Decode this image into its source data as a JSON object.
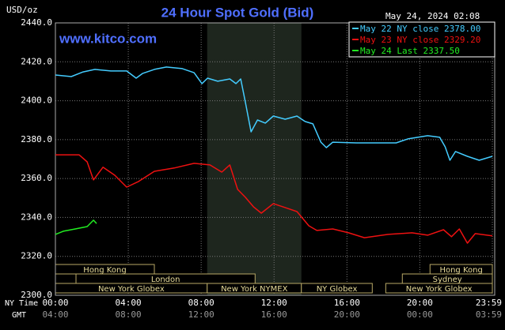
{
  "chart_data": {
    "type": "line",
    "title": "24 Hour Spot Gold (Bid)",
    "y_label": "USD/oz",
    "timestamp": "May 24, 2024 02:08",
    "watermark": "www.kitco.com",
    "x_label": "NY Time",
    "x2_label": "GMT",
    "background": "#000000",
    "grid": true,
    "legend": "upper right",
    "xlim": [
      0,
      23.98
    ],
    "ylim": [
      2300,
      2440
    ],
    "yticks": [
      {
        "value": 2300,
        "label": "2300.0"
      },
      {
        "value": 2320,
        "label": "2320.0"
      },
      {
        "value": 2340,
        "label": "2340.0"
      },
      {
        "value": 2360,
        "label": "2360.0"
      },
      {
        "value": 2380,
        "label": "2380.0"
      },
      {
        "value": 2400,
        "label": "2400.0"
      },
      {
        "value": 2420,
        "label": "2420.0"
      },
      {
        "value": 2440,
        "label": "2440.0"
      }
    ],
    "xticks": [
      {
        "value": 0,
        "label": "00:00"
      },
      {
        "value": 4,
        "label": "04:00"
      },
      {
        "value": 8,
        "label": "08:00"
      },
      {
        "value": 12,
        "label": "12:00"
      },
      {
        "value": 16,
        "label": "16:00"
      },
      {
        "value": 20,
        "label": "20:00"
      },
      {
        "value": 23.98,
        "label": "23:59"
      }
    ],
    "x2ticks": [
      {
        "value": 0,
        "label": "04:00"
      },
      {
        "value": 4,
        "label": "08:00"
      },
      {
        "value": 8,
        "label": "12:00"
      },
      {
        "value": 12,
        "label": "16:00"
      },
      {
        "value": 16,
        "label": "20:00"
      },
      {
        "value": 20,
        "label": "00:00"
      },
      {
        "value": 23.98,
        "label": "03:59"
      }
    ],
    "sessions": [
      {
        "name": "Hong Kong",
        "start": 0,
        "end": 5.43,
        "row": 0
      },
      {
        "name": "London",
        "start": 1.13,
        "end": 10.96,
        "row": 1
      },
      {
        "name": "New York Globex",
        "start": 0,
        "end": 8.33,
        "row": 2
      },
      {
        "name": "New York NYMEX",
        "start": 8.33,
        "end": 13.5,
        "row": 2,
        "highlight": true
      },
      {
        "name": "NY Globex",
        "start": 13.5,
        "end": 17.39,
        "row": 2
      },
      {
        "name": "New York Globex",
        "start": 18.13,
        "end": 23.98,
        "row": 2
      },
      {
        "name": "Sydney",
        "start": 19.04,
        "end": 23.98,
        "row": 1
      },
      {
        "name": "Hong Kong",
        "start": 20.56,
        "end": 23.98,
        "row": 0
      }
    ],
    "series": [
      {
        "name": "May 22 NY close 2378.00",
        "color": "#44ccff",
        "x": [
          0,
          0.87,
          1.52,
          2.17,
          3.04,
          3.91,
          4.43,
          4.78,
          5.43,
          6.09,
          6.96,
          7.61,
          8.04,
          8.35,
          8.91,
          9.57,
          9.91,
          10.17,
          10.43,
          10.74,
          11.09,
          11.52,
          11.96,
          12.61,
          13.26,
          13.7,
          14.13,
          14.57,
          14.87,
          15.22,
          16.52,
          17.83,
          18.7,
          19.35,
          20.43,
          21.09,
          21.39,
          21.65,
          21.96,
          22.61,
          23.26,
          23.98
        ],
        "values": [
          2413.2,
          2412.4,
          2414.8,
          2416.1,
          2415.3,
          2415.3,
          2411.6,
          2414.0,
          2416.1,
          2417.3,
          2416.5,
          2414.4,
          2408.8,
          2411.6,
          2410.0,
          2411.2,
          2408.8,
          2411.2,
          2399.0,
          2384.0,
          2390.1,
          2388.5,
          2392.1,
          2390.5,
          2392.1,
          2389.3,
          2388.1,
          2378.7,
          2375.9,
          2378.7,
          2378.3,
          2378.3,
          2378.3,
          2380.4,
          2382.0,
          2381.2,
          2376.3,
          2369.4,
          2373.9,
          2371.4,
          2369.4,
          2371.4
        ]
      },
      {
        "name": "May 23 NY close 2329.20",
        "color": "#ee1111",
        "x": [
          0,
          1.3,
          1.74,
          2.09,
          2.61,
          3.26,
          3.91,
          4.57,
          5.43,
          6.52,
          7.61,
          8.48,
          9.13,
          9.57,
          10.0,
          10.43,
          10.87,
          11.3,
          11.96,
          12.61,
          13.26,
          13.91,
          14.35,
          15.22,
          16.09,
          16.96,
          18.26,
          19.57,
          20.43,
          21.3,
          21.74,
          22.17,
          22.61,
          23.04,
          23.98
        ],
        "values": [
          2372.2,
          2372.2,
          2368.6,
          2359.3,
          2365.8,
          2361.7,
          2355.6,
          2358.5,
          2363.7,
          2365.4,
          2367.8,
          2367.0,
          2363.3,
          2367.0,
          2354.4,
          2350.3,
          2345.5,
          2342.2,
          2347.1,
          2345.1,
          2343.0,
          2335.7,
          2333.3,
          2334.1,
          2332.1,
          2329.6,
          2331.3,
          2332.1,
          2330.9,
          2333.7,
          2330.1,
          2334.1,
          2326.8,
          2331.7,
          2330.5
        ]
      },
      {
        "name": "May 24 Last 2337.50",
        "color": "#22ee22",
        "x": [
          0,
          0.43,
          1.09,
          1.74,
          2.09,
          2.26
        ],
        "values": [
          2331.3,
          2332.9,
          2334.1,
          2335.3,
          2338.6,
          2336.9
        ]
      }
    ]
  }
}
